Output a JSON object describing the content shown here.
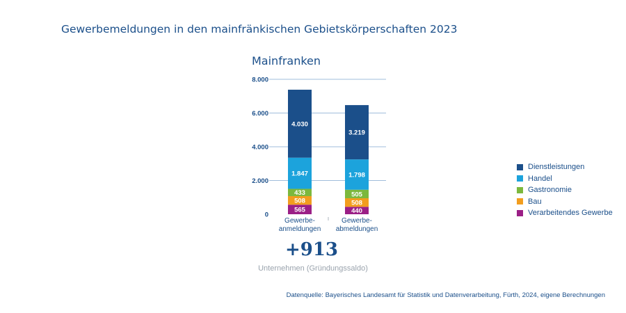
{
  "page_title": "Gewerbemeldungen in den mainfränkischen Gebietskörperschaften 2023",
  "chart_data": {
    "type": "bar",
    "stacked": true,
    "title": "Mainfranken",
    "categories": [
      [
        "Gewerbe-",
        "anmeldungen"
      ],
      [
        "Gewerbe-",
        "abmeldungen"
      ]
    ],
    "ylim": [
      0,
      8000
    ],
    "yticks": [
      0,
      2000,
      4000,
      6000,
      8000
    ],
    "ytick_labels": [
      "0",
      "2.000",
      "4.000",
      "6.000",
      "8.000"
    ],
    "grid": true,
    "legend_position": "right",
    "series": [
      {
        "name": "Verarbeitendes Gewerbe",
        "color": "#9b1f86",
        "values": [
          565,
          440
        ],
        "labels": [
          "565",
          "440"
        ]
      },
      {
        "name": "Bau",
        "color": "#f29d1e",
        "values": [
          508,
          508
        ],
        "labels": [
          "508",
          "508"
        ]
      },
      {
        "name": "Gastronomie",
        "color": "#7cb83d",
        "values": [
          433,
          505
        ],
        "labels": [
          "433",
          "505"
        ]
      },
      {
        "name": "Handel",
        "color": "#1ca3dc",
        "values": [
          1847,
          1798
        ],
        "labels": [
          "1.847",
          "1.798"
        ]
      },
      {
        "name": "Dienstleistungen",
        "color": "#1b4f8a",
        "values": [
          4030,
          3219
        ],
        "labels": [
          "4.030",
          "3.219"
        ]
      }
    ]
  },
  "saldo": {
    "value": "+913",
    "label": "Unternehmen (Gründungssaldo)"
  },
  "source": "Datenquelle: Bayerisches Landesamt für Statistik und Datenverarbeitung, Fürth, 2024, eigene Berechnungen"
}
